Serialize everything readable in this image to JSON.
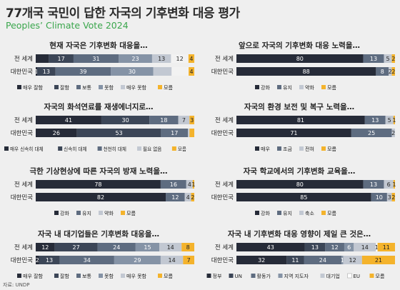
{
  "title": "77개국 국민이 답한 자국의 기후변화 대응 평가",
  "subtitle": "Peoples’ Climate Vote 2024",
  "source": "자료: UNDP",
  "colors": {
    "c1": "#262b38",
    "c2": "#3c4657",
    "c3": "#5e6c80",
    "c4": "#8593a6",
    "c5": "#c2c8d2",
    "c6": "#f4b32c"
  },
  "chart_data": [
    {
      "type": "bar",
      "orientation": "horizontal",
      "stacked": true,
      "title": "현재 자국은 기후변화 대응을…",
      "categories": [
        "전 세계",
        "대한민국"
      ],
      "series": [
        {
          "name": "매우 잘함",
          "color": "#262b38",
          "values": [
            9,
            1
          ]
        },
        {
          "name": "잘함",
          "color": "#3c4657",
          "values": [
            17,
            13
          ]
        },
        {
          "name": "보통",
          "color": "#5e6c80",
          "values": [
            31,
            39
          ]
        },
        {
          "name": "못함",
          "color": "#8593a6",
          "values": [
            23,
            30
          ]
        },
        {
          "name": "매우 못함",
          "color": "#c2c8d2",
          "values": [
            13,
            13
          ]
        },
        {
          "name": "",
          "color": "#f2f2f2",
          "values": [
            12,
            12
          ]
        },
        {
          "name": "모름",
          "color": "#f4b32c",
          "values": [
            4,
            4
          ]
        }
      ],
      "labels_shown": [
        [
          false,
          true,
          true,
          true,
          true,
          true,
          true
        ],
        [
          true,
          true,
          true,
          true,
          false,
          false,
          true
        ]
      ]
    },
    {
      "type": "bar",
      "orientation": "horizontal",
      "stacked": true,
      "title": "앞으로 자국의 기후변화 대응 노력을…",
      "categories": [
        "전 세계",
        "대한민국"
      ],
      "series": [
        {
          "name": "강화",
          "color": "#262b38",
          "values": [
            80,
            88
          ]
        },
        {
          "name": "유지",
          "color": "#5e6c80",
          "values": [
            13,
            8
          ]
        },
        {
          "name": "약화",
          "color": "#c2c8d2",
          "values": [
            5,
            2
          ]
        },
        {
          "name": "모름",
          "color": "#f4b32c",
          "values": [
            2,
            2
          ]
        }
      ]
    },
    {
      "type": "bar",
      "orientation": "horizontal",
      "stacked": true,
      "title": "자국의 화석연료를 재생에너지로…",
      "categories": [
        "전 세계",
        "대한민국"
      ],
      "series": [
        {
          "name": "매우 신속히 대체",
          "color": "#262b38",
          "values": [
            41,
            26
          ]
        },
        {
          "name": "신속히 대체",
          "color": "#3c4657",
          "values": [
            30,
            53
          ]
        },
        {
          "name": "천천히 대체",
          "color": "#5e6c80",
          "values": [
            18,
            17
          ]
        },
        {
          "name": "필요 없음",
          "color": "#c2c8d2",
          "values": [
            7,
            1
          ]
        },
        {
          "name": "모름",
          "color": "#f4b32c",
          "values": [
            3,
            3
          ]
        }
      ],
      "labels_shown": [
        [
          true,
          true,
          true,
          true,
          true
        ],
        [
          true,
          true,
          true,
          false,
          false
        ]
      ]
    },
    {
      "type": "bar",
      "orientation": "horizontal",
      "stacked": true,
      "title": "자국의 환경 보전 및 복구 노력을…",
      "categories": [
        "전 세계",
        "대한민국"
      ],
      "series": [
        {
          "name": "매우",
          "color": "#262b38",
          "values": [
            81,
            71
          ]
        },
        {
          "name": "조금",
          "color": "#5e6c80",
          "values": [
            13,
            25
          ]
        },
        {
          "name": "전혀",
          "color": "#c2c8d2",
          "values": [
            5,
            2
          ]
        },
        {
          "name": "모름",
          "color": "#f4b32c",
          "values": [
            1,
            0
          ]
        }
      ]
    },
    {
      "type": "bar",
      "orientation": "horizontal",
      "stacked": true,
      "title": "극한 기상현상에 따른 자국의 방재 노력을…",
      "categories": [
        "전 세계",
        "대한민국"
      ],
      "series": [
        {
          "name": "강화",
          "color": "#262b38",
          "values": [
            78,
            82
          ]
        },
        {
          "name": "유지",
          "color": "#5e6c80",
          "values": [
            16,
            12
          ]
        },
        {
          "name": "약화",
          "color": "#c2c8d2",
          "values": [
            4,
            4
          ]
        },
        {
          "name": "모름",
          "color": "#f4b32c",
          "values": [
            1,
            2
          ]
        }
      ]
    },
    {
      "type": "bar",
      "orientation": "horizontal",
      "stacked": true,
      "title": "자국 학교에서의 기후변화 교육을…",
      "categories": [
        "전 세계",
        "대한민국"
      ],
      "series": [
        {
          "name": "강화",
          "color": "#262b38",
          "values": [
            80,
            85
          ]
        },
        {
          "name": "유지",
          "color": "#5e6c80",
          "values": [
            13,
            10
          ]
        },
        {
          "name": "축소",
          "color": "#c2c8d2",
          "values": [
            6,
            3
          ]
        },
        {
          "name": "모름",
          "color": "#f4b32c",
          "values": [
            1,
            2
          ]
        }
      ]
    },
    {
      "type": "bar",
      "orientation": "horizontal",
      "stacked": true,
      "title": "자국 내 대기업들은 기후변화 대응을…",
      "categories": [
        "전 세계",
        "대한민국"
      ],
      "series": [
        {
          "name": "매우 잘함",
          "color": "#262b38",
          "values": [
            12,
            2
          ]
        },
        {
          "name": "잘함",
          "color": "#3c4657",
          "values": [
            27,
            13
          ]
        },
        {
          "name": "보통",
          "color": "#5e6c80",
          "values": [
            24,
            34
          ]
        },
        {
          "name": "못함",
          "color": "#8593a6",
          "values": [
            15,
            29
          ]
        },
        {
          "name": "매우 못함",
          "color": "#c2c8d2",
          "values": [
            14,
            14
          ]
        },
        {
          "name": "모름",
          "color": "#f4b32c",
          "values": [
            8,
            7
          ]
        }
      ]
    },
    {
      "type": "bar",
      "orientation": "horizontal",
      "stacked": true,
      "title": "자국 내 기후변화 대응 영향이 제일 큰 것은…",
      "categories": [
        "전 세계",
        "대한민국"
      ],
      "series": [
        {
          "name": "정부",
          "color": "#262b38",
          "values": [
            43,
            32
          ]
        },
        {
          "name": "UN",
          "color": "#3c4657",
          "values": [
            13,
            11
          ]
        },
        {
          "name": "활동가",
          "color": "#5e6c80",
          "values": [
            12,
            24
          ]
        },
        {
          "name": "지역 지도자",
          "color": "#8593a6",
          "values": [
            6,
            1
          ]
        },
        {
          "name": "대기업",
          "color": "#c2c8d2",
          "values": [
            14,
            12
          ]
        },
        {
          "name": "EU",
          "color": "#ffffff",
          "values": [
            1,
            0
          ]
        },
        {
          "name": "모름",
          "color": "#f4b32c",
          "values": [
            11,
            21
          ]
        }
      ]
    }
  ]
}
